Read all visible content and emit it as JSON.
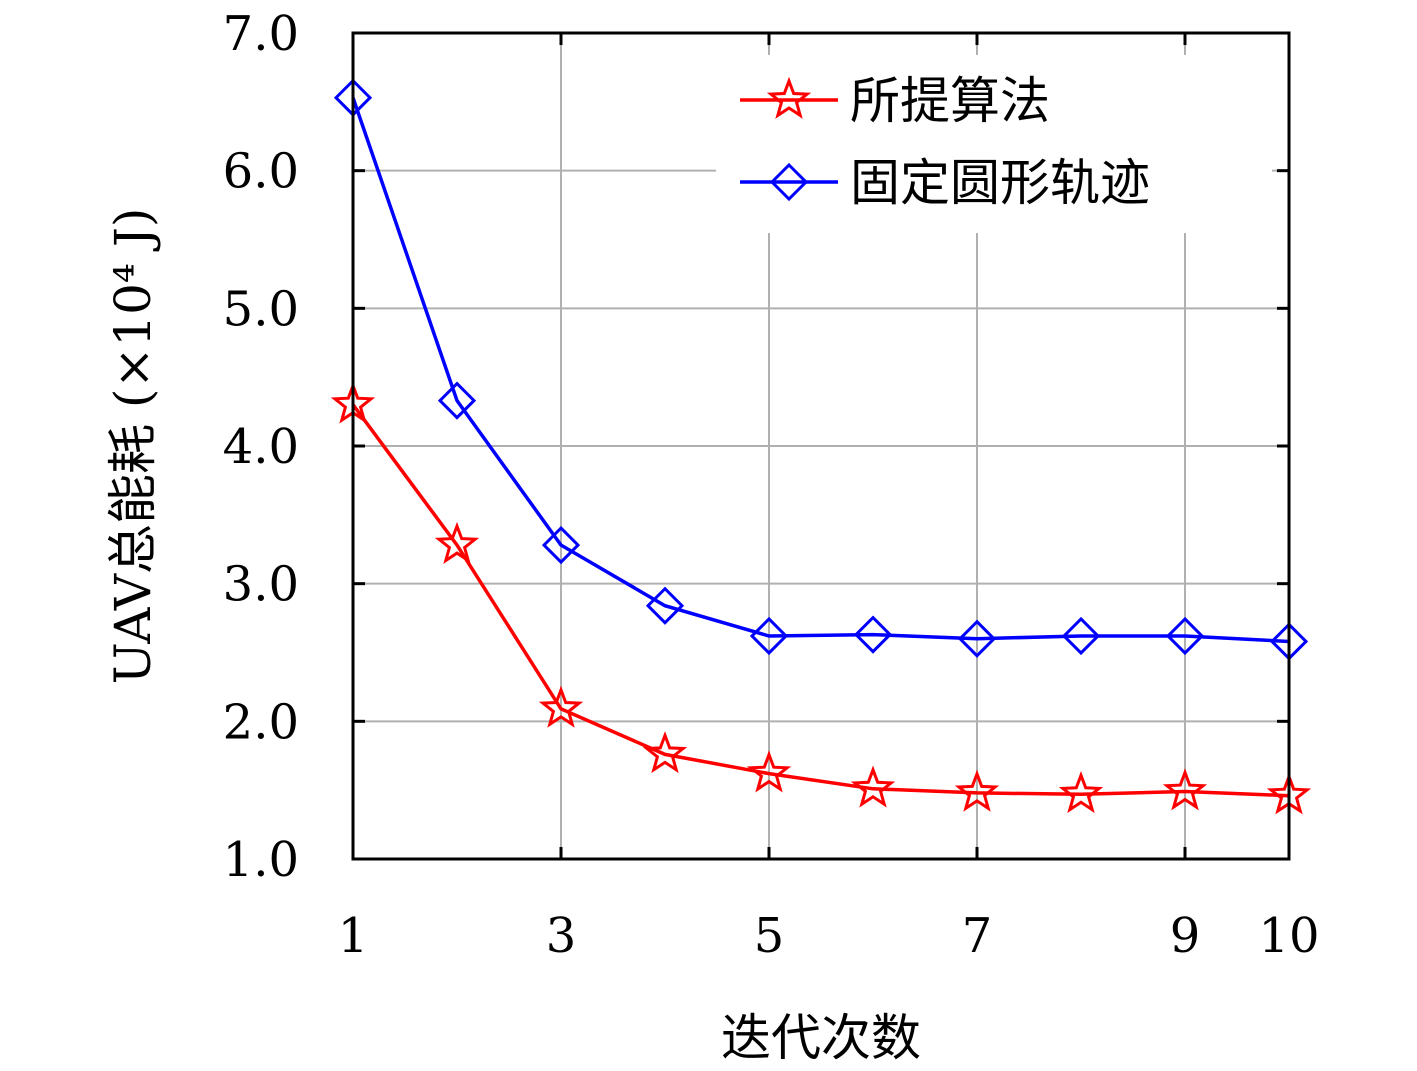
{
  "chart_data": {
    "type": "line",
    "xlabel": "迭代次数",
    "ylabel": "UAV总能耗 (×10⁴ J)",
    "xlim": [
      1,
      10
    ],
    "ylim": [
      1.0,
      7.0
    ],
    "x_ticks": [
      1,
      3,
      5,
      7,
      9,
      10
    ],
    "x_tick_labels": [
      "1",
      "3",
      "5",
      "7",
      "9",
      "10"
    ],
    "y_ticks": [
      1.0,
      2.0,
      3.0,
      4.0,
      5.0,
      6.0,
      7.0
    ],
    "y_tick_labels": [
      "1.0",
      "2.0",
      "3.0",
      "4.0",
      "5.0",
      "6.0",
      "7.0"
    ],
    "grid": true,
    "legend_position": "top-right",
    "x": [
      1,
      2,
      3,
      4,
      5,
      6,
      7,
      8,
      9,
      10
    ],
    "series": [
      {
        "name": "所提算法",
        "color": "#ff0000",
        "marker": "star",
        "values": [
          4.3,
          3.28,
          2.09,
          1.76,
          1.62,
          1.51,
          1.48,
          1.47,
          1.49,
          1.46
        ]
      },
      {
        "name": "固定圆形轨迹",
        "color": "#0000ff",
        "marker": "diamond",
        "values": [
          6.53,
          4.33,
          3.28,
          2.84,
          2.62,
          2.63,
          2.6,
          2.62,
          2.62,
          2.58
        ]
      }
    ]
  }
}
